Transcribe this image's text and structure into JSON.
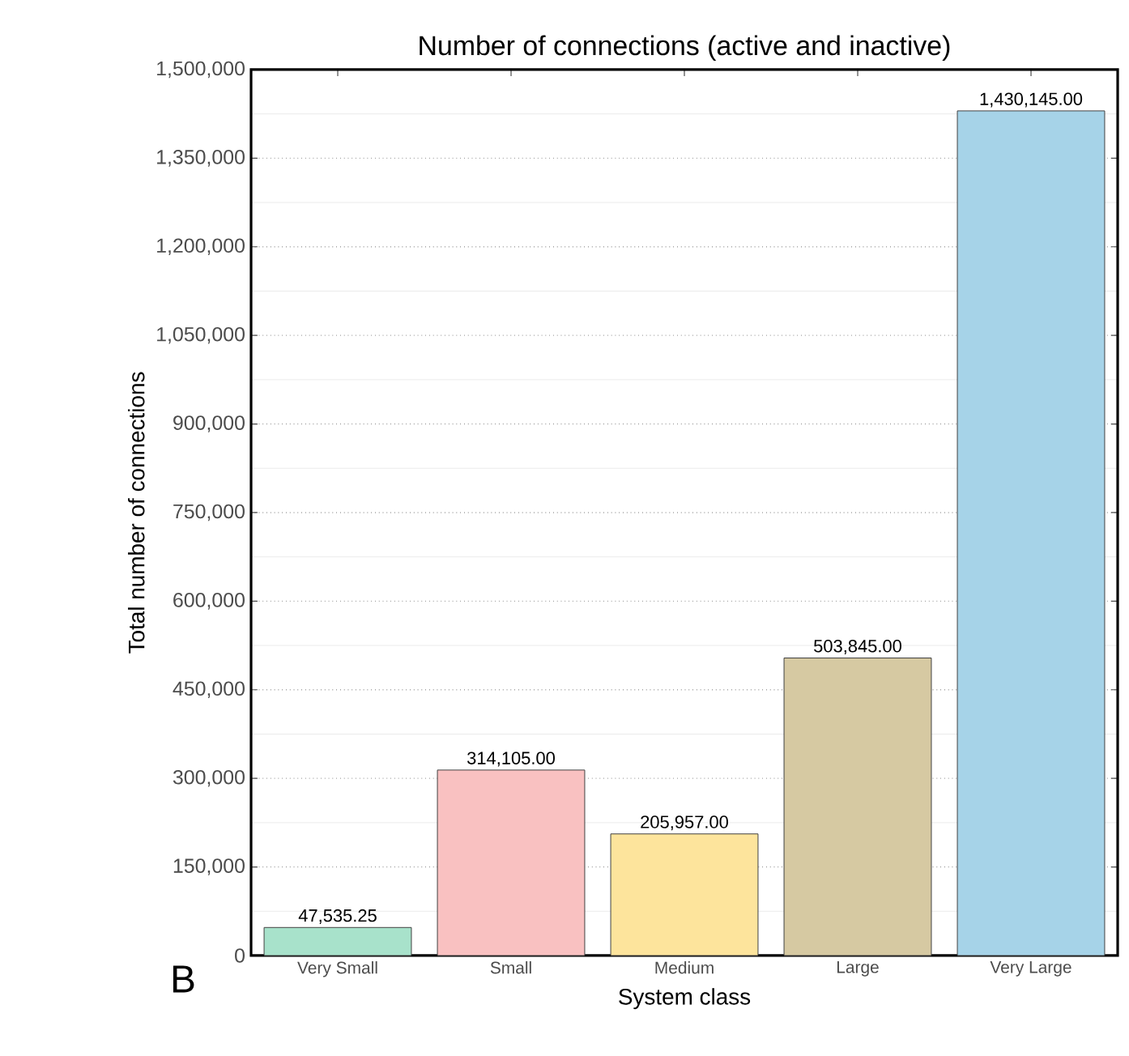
{
  "chart_data": {
    "type": "bar",
    "title": "Number of connections (active and inactive)",
    "xlabel": "System class",
    "ylabel": "Total number of connections",
    "categories": [
      "Very Small",
      "Small",
      "Medium",
      "Large",
      "Very Large"
    ],
    "values": [
      47535.25,
      314105,
      205957,
      503845,
      1430145
    ],
    "value_labels": [
      "47,535.25",
      "314,105.00",
      "205,957.00",
      "503,845.00",
      "1,430,145.00"
    ],
    "colors": [
      "#a8e2cb",
      "#f9c1c1",
      "#fde49c",
      "#d6c9a2",
      "#a6d3e8"
    ],
    "ylim": [
      0,
      1500000
    ],
    "yticks": [
      {
        "value": 0,
        "label": "0"
      },
      {
        "value": 150000,
        "label": "150,000"
      },
      {
        "value": 300000,
        "label": "300,000"
      },
      {
        "value": 450000,
        "label": "450,000"
      },
      {
        "value": 600000,
        "label": "600,000"
      },
      {
        "value": 750000,
        "label": "750,000"
      },
      {
        "value": 900000,
        "label": "900,000"
      },
      {
        "value": 1050000,
        "label": "1,050,000"
      },
      {
        "value": 1200000,
        "label": "1,200,000"
      },
      {
        "value": 1350000,
        "label": "1,350,000"
      },
      {
        "value": 1500000,
        "label": "1,500,000"
      }
    ],
    "grid": "y",
    "annotations": [
      "B"
    ]
  }
}
